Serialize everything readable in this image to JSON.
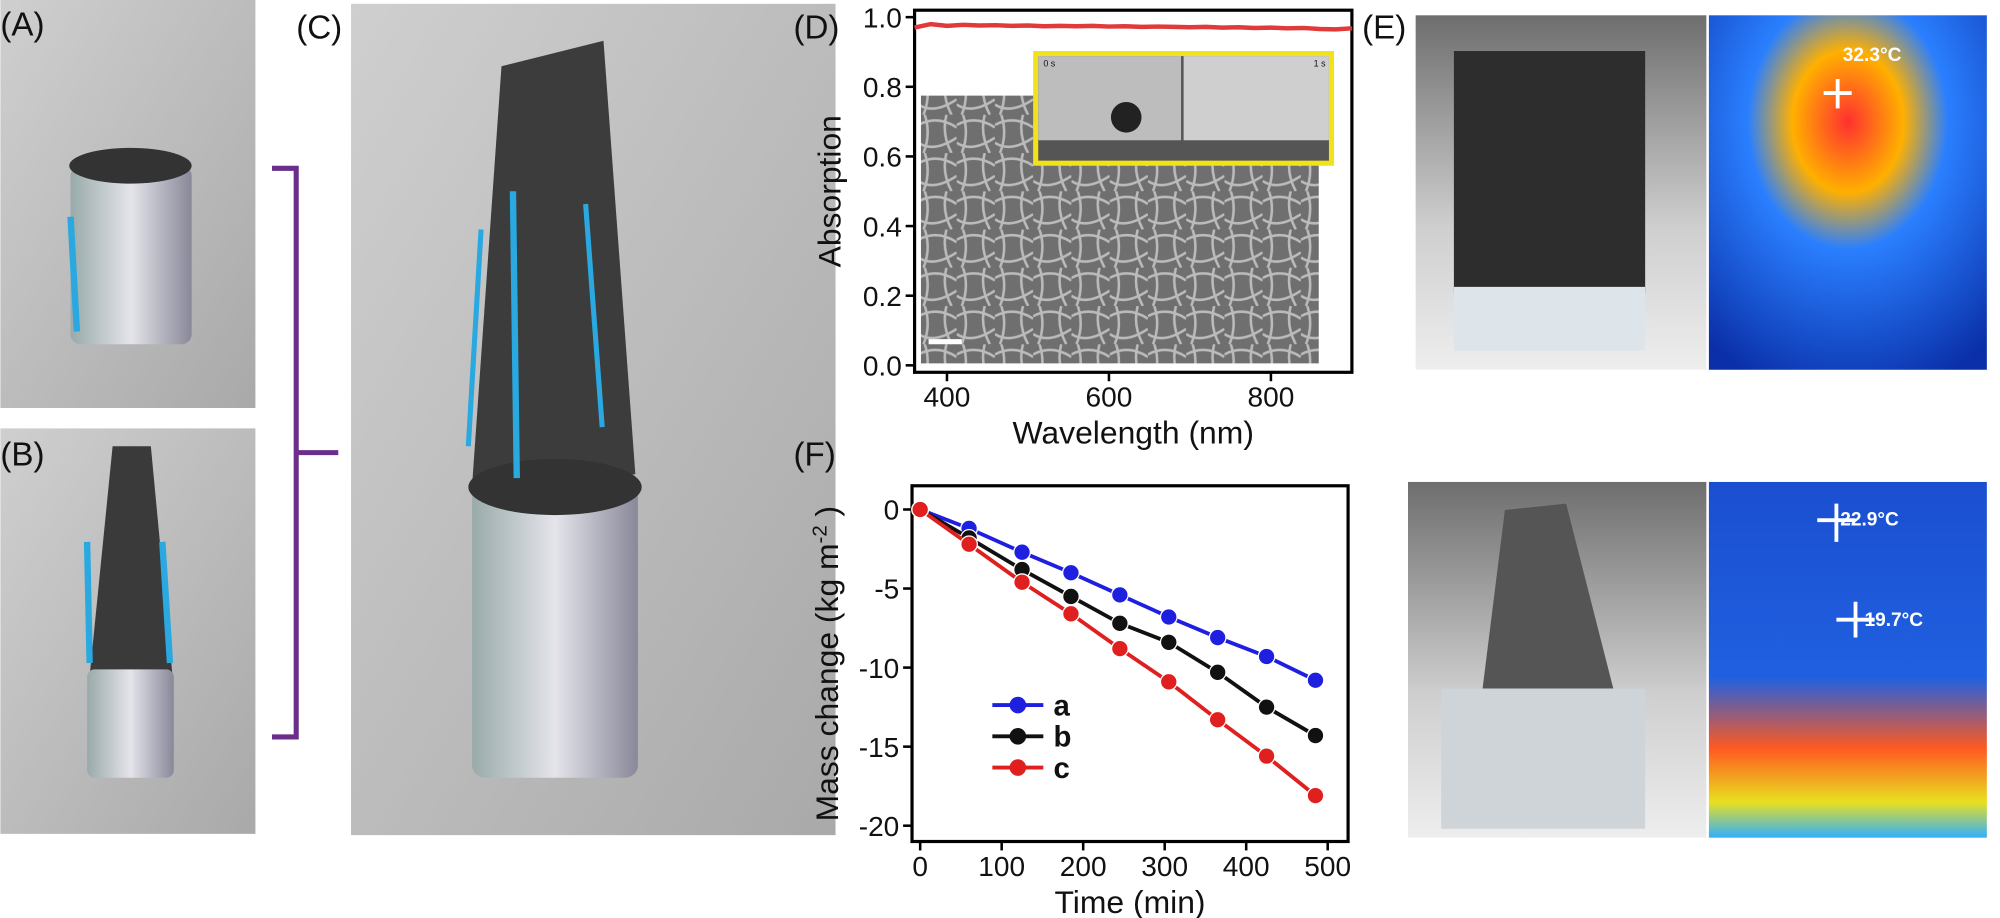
{
  "panel_labels": [
    "(A)",
    "(B)",
    "(C)",
    "(E)"
  ],
  "temperatures": [
    "32.3°C",
    "22.9°C",
    "19.7°C"
  ],
  "inset_times": [
    "0 s",
    "1 s"
  ],
  "chart_data": [
    {
      "type": "line",
      "label": "(D)",
      "xlabel": "Wavelength (nm)",
      "ylabel": "Absorption",
      "x": [
        360,
        380,
        400,
        420,
        440,
        460,
        480,
        500,
        520,
        540,
        560,
        580,
        600,
        620,
        640,
        660,
        680,
        700,
        720,
        740,
        760,
        780,
        800,
        820,
        840,
        860,
        880,
        900
      ],
      "series": [
        {
          "color": "#e03a3a",
          "values": [
            0.97,
            0.98,
            0.975,
            0.978,
            0.976,
            0.977,
            0.975,
            0.976,
            0.974,
            0.975,
            0.974,
            0.975,
            0.973,
            0.974,
            0.972,
            0.973,
            0.972,
            0.971,
            0.972,
            0.97,
            0.971,
            0.969,
            0.97,
            0.968,
            0.969,
            0.966,
            0.965,
            0.968
          ]
        }
      ],
      "xlim": [
        360,
        900
      ],
      "ylim": [
        -0.02,
        1.02
      ],
      "xticks": [
        400,
        600,
        800
      ],
      "yticks": [
        {
          "value": 0,
          "label": "0.0"
        },
        {
          "value": 0.2,
          "label": "0.2"
        },
        {
          "value": 0.4,
          "label": "0.4"
        },
        {
          "value": 0.6,
          "label": "0.6"
        },
        {
          "value": 0.8,
          "label": "0.8"
        },
        {
          "value": 1,
          "label": "1.0"
        }
      ]
    },
    {
      "type": "line",
      "label": "(F)",
      "xlabel": "Time (min)",
      "ylabel": "Mass change (kg m",
      "ylabel_sup": "-2",
      "ylabel_end": " )",
      "x": [
        0,
        60,
        125,
        185,
        245,
        305,
        365,
        425,
        485
      ],
      "series": [
        {
          "name": "a",
          "color": "#1f1fe0",
          "values": [
            0,
            -1.2,
            -2.7,
            -4.0,
            -5.4,
            -6.8,
            -8.1,
            -9.3,
            -10.8
          ]
        },
        {
          "name": "b",
          "color": "#111111",
          "values": [
            0,
            -1.8,
            -3.8,
            -5.5,
            -7.2,
            -8.4,
            -10.3,
            -12.5,
            -14.3
          ]
        },
        {
          "name": "c",
          "color": "#e01f1f",
          "values": [
            0,
            -2.2,
            -4.6,
            -6.6,
            -8.8,
            -10.9,
            -13.3,
            -15.6,
            -18.1
          ]
        }
      ],
      "xlim": [
        -10,
        525
      ],
      "ylim": [
        -21,
        1.5
      ],
      "xticks": [
        0,
        100,
        200,
        300,
        400,
        500
      ],
      "yticks": [
        0,
        -5,
        -10,
        -15,
        -20
      ],
      "markers": true
    }
  ]
}
